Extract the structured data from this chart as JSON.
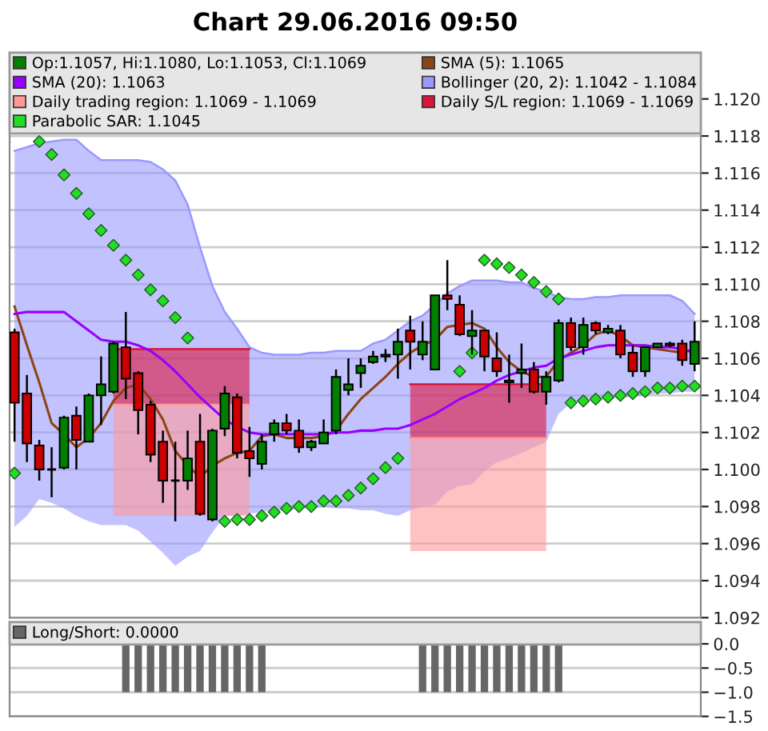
{
  "chart_data": [
    {
      "type": "candlestick",
      "title": "Chart 29.06.2016 09:50",
      "categories": [
        null,
        null,
        null,
        null,
        null,
        null,
        null,
        null,
        null,
        null,
        null,
        null,
        null,
        null,
        null,
        null,
        null,
        null,
        null,
        null,
        null,
        null,
        null,
        null,
        null,
        null,
        null,
        null,
        null,
        null,
        null,
        null,
        null,
        null,
        null,
        null,
        null,
        null,
        null,
        null,
        null,
        null,
        null,
        null,
        null,
        null,
        null,
        null,
        null,
        null,
        null,
        null,
        null,
        null,
        null,
        null
      ],
      "series": [
        {
          "name": "Op:1.1057, Hi:1.1080, Lo:1.1053, Cl:1.1069",
          "type": "candlestick",
          "color": "#008000",
          "colors": [
            "#cc0000",
            "#cc0000",
            "#cc0000",
            "#000000",
            "#008000",
            "#cc0000",
            "#008000",
            "#008000",
            "#008000",
            "#cc0000",
            "#cc0000",
            "#cc0000",
            "#cc0000",
            "#000000",
            "#008000",
            "#cc0000",
            "#008000",
            "#008000",
            "#cc0000",
            "#cc0000",
            "#008000",
            "#008000",
            "#cc0000",
            "#cc0000",
            "#008000",
            "#008000",
            "#008000",
            "#008000",
            "#008000",
            "#008000",
            "#cc0000",
            "#008000",
            "#cc0000",
            "#008000",
            "#008000",
            "#cc0000",
            "#cc0000",
            "#008000",
            "#cc0000",
            "#cc0000",
            "#008000",
            "#008000",
            "#cc0000",
            "#008000",
            "#008000",
            "#cc0000",
            "#008000",
            "#cc0000",
            "#008000",
            "#cc0000",
            "#cc0000",
            "#008000",
            "#008000",
            "#cc0000",
            "#cc0000",
            "#008000"
          ],
          "ohlc": [
            [
              1.1074,
              1.1076,
              1.1015,
              1.1036
            ],
            [
              1.1041,
              1.1051,
              1.1004,
              1.1014
            ],
            [
              1.1013,
              1.1016,
              1.0994,
              1.1
            ],
            [
              1.1,
              1.1012,
              1.0985,
              1.1
            ],
            [
              1.1001,
              1.1029,
              1.1,
              1.1028
            ],
            [
              1.1029,
              1.1034,
              1.1,
              1.1016
            ],
            [
              1.1015,
              1.1041,
              1.1015,
              1.104
            ],
            [
              1.104,
              1.1061,
              1.1024,
              1.1046
            ],
            [
              1.1042,
              1.1069,
              1.1041,
              1.1068
            ],
            [
              1.1066,
              1.1085,
              1.1038,
              1.1049
            ],
            [
              1.1052,
              1.1053,
              1.1019,
              1.1032
            ],
            [
              1.1035,
              1.1037,
              1.1004,
              1.1008
            ],
            [
              1.1015,
              1.1021,
              1.0982,
              1.0994
            ],
            [
              1.0994,
              1.1015,
              1.0972,
              1.0994
            ],
            [
              1.0994,
              1.1021,
              1.0989,
              1.1006
            ],
            [
              1.1015,
              1.103,
              1.0975,
              1.0976
            ],
            [
              1.0973,
              1.1022,
              1.0972,
              1.1021
            ],
            [
              1.1022,
              1.1045,
              1.1018,
              1.1041
            ],
            [
              1.1039,
              1.1041,
              1.1006,
              1.1009
            ],
            [
              1.101,
              1.1023,
              1.0996,
              1.1006
            ],
            [
              1.1003,
              1.1019,
              1.1,
              1.1015
            ],
            [
              1.1019,
              1.1027,
              1.1015,
              1.1025
            ],
            [
              1.1025,
              1.103,
              1.1019,
              1.1021
            ],
            [
              1.1021,
              1.1027,
              1.1009,
              1.1012
            ],
            [
              1.1012,
              1.1016,
              1.101,
              1.1015
            ],
            [
              1.1014,
              1.1027,
              1.1014,
              1.102
            ],
            [
              1.1021,
              1.1054,
              1.1019,
              1.105
            ],
            [
              1.1043,
              1.106,
              1.104,
              1.1046
            ],
            [
              1.1052,
              1.106,
              1.1044,
              1.1056
            ],
            [
              1.1058,
              1.1064,
              1.1057,
              1.1061
            ],
            [
              1.1062,
              1.1065,
              1.1058,
              1.1061
            ],
            [
              1.1062,
              1.1076,
              1.1049,
              1.1069
            ],
            [
              1.1075,
              1.1083,
              1.1054,
              1.1069
            ],
            [
              1.1062,
              1.108,
              1.1059,
              1.1069
            ],
            [
              1.1054,
              1.1094,
              1.1054,
              1.1094
            ],
            [
              1.1094,
              1.1113,
              1.1086,
              1.1092
            ],
            [
              1.1089,
              1.1094,
              1.1072,
              1.1073
            ],
            [
              1.1072,
              1.1086,
              1.1062,
              1.1075
            ],
            [
              1.1075,
              1.1075,
              1.1053,
              1.1061
            ],
            [
              1.106,
              1.1074,
              1.105,
              1.1053
            ],
            [
              1.1047,
              1.1062,
              1.1036,
              1.1048
            ],
            [
              1.1052,
              1.1068,
              1.1044,
              1.1054
            ],
            [
              1.1054,
              1.1058,
              1.1041,
              1.1042
            ],
            [
              1.1042,
              1.1053,
              1.1035,
              1.105
            ],
            [
              1.1048,
              1.1081,
              1.1047,
              1.1079
            ],
            [
              1.1079,
              1.1082,
              1.1064,
              1.1066
            ],
            [
              1.1066,
              1.1082,
              1.1062,
              1.1078
            ],
            [
              1.1079,
              1.108,
              1.1073,
              1.1075
            ],
            [
              1.1074,
              1.1078,
              1.1073,
              1.1076
            ],
            [
              1.1075,
              1.1078,
              1.106,
              1.1062
            ],
            [
              1.1063,
              1.1067,
              1.105,
              1.1053
            ],
            [
              1.1053,
              1.1066,
              1.105,
              1.1066
            ],
            [
              1.1066,
              1.1068,
              1.1066,
              1.1068
            ],
            [
              1.1068,
              1.1069,
              1.1066,
              1.1067
            ],
            [
              1.1068,
              1.107,
              1.1056,
              1.1059
            ],
            [
              1.1057,
              1.108,
              1.1053,
              1.1069
            ]
          ]
        },
        {
          "name": "SMA (5): 1.1065",
          "type": "line",
          "color": "#8b4513",
          "values": [
            1.1088,
            1.1067,
            1.1047,
            1.1025,
            1.1019,
            1.1012,
            1.1017,
            1.1025,
            1.1037,
            1.1044,
            1.1046,
            1.1038,
            1.1027,
            1.101,
            1.1002,
            1.0996,
            1.1002,
            1.1006,
            1.1009,
            1.101,
            1.1018,
            1.1019,
            1.1017,
            1.1017,
            1.1017,
            1.1018,
            1.1021,
            1.103,
            1.1038,
            1.1044,
            1.105,
            1.1057,
            1.1063,
            1.1067,
            1.107,
            1.1077,
            1.1078,
            1.1079,
            1.1076,
            1.1066,
            1.1058,
            1.1053,
            1.105,
            1.105,
            1.1059,
            1.1063,
            1.1067,
            1.1073,
            1.1075,
            1.1072,
            1.1067,
            1.1066,
            1.1065,
            1.1064,
            1.1063,
            1.1065
          ]
        },
        {
          "name": "SMA (20): 1.1063",
          "type": "line",
          "color": "#9900ff",
          "values": [
            1.1084,
            1.1085,
            1.1085,
            1.1085,
            1.1085,
            1.108,
            1.1075,
            1.107,
            1.1069,
            1.1069,
            1.1067,
            1.1064,
            1.1059,
            1.1053,
            1.1046,
            1.1039,
            1.1033,
            1.1027,
            1.1023,
            1.102,
            1.1019,
            1.1019,
            1.1019,
            1.1019,
            1.1019,
            1.1019,
            1.102,
            1.102,
            1.1021,
            1.1021,
            1.1022,
            1.1022,
            1.1024,
            1.1027,
            1.103,
            1.1034,
            1.1038,
            1.1041,
            1.1044,
            1.1048,
            1.1051,
            1.1053,
            1.1055,
            1.1056,
            1.106,
            1.1062,
            1.1064,
            1.1066,
            1.1067,
            1.1067,
            1.1067,
            1.1067,
            1.1066,
            1.1066,
            1.1065,
            1.1063
          ]
        },
        {
          "name": "Bollinger (20, 2): 1.1042 - 1.1084",
          "type": "line",
          "color": "#9999ff",
          "lower": [
            1.0969,
            1.0975,
            1.0984,
            1.0982,
            1.0979,
            1.0975,
            1.0972,
            1.097,
            1.097,
            1.097,
            1.0967,
            1.0961,
            1.0955,
            1.0948,
            1.0953,
            1.0956,
            1.0966,
            1.0975,
            1.0975,
            1.0976,
            1.0977,
            1.0978,
            1.0978,
            1.0979,
            1.0979,
            1.098,
            1.0979,
            1.0979,
            1.0978,
            1.0978,
            1.0976,
            1.0975,
            1.0978,
            1.098,
            1.0981,
            1.0988,
            1.0991,
            1.0992,
            1.0999,
            1.1004,
            1.1006,
            1.1009,
            1.1012,
            1.1015,
            1.103,
            1.1036,
            1.1038,
            1.1039,
            1.1039,
            1.1039,
            1.1039,
            1.104,
            1.1041,
            1.1041,
            1.1042,
            1.1042
          ],
          "values": [
            1.1172,
            1.1174,
            1.1176,
            1.1177,
            1.1178,
            1.1178,
            1.1172,
            1.1167,
            1.1167,
            1.1167,
            1.1167,
            1.1166,
            1.1162,
            1.1156,
            1.1143,
            1.112,
            1.1099,
            1.1085,
            1.1076,
            1.1066,
            1.1063,
            1.1062,
            1.1062,
            1.1062,
            1.1063,
            1.1063,
            1.1064,
            1.1064,
            1.1064,
            1.1068,
            1.107,
            1.1075,
            1.108,
            1.1083,
            1.1089,
            1.1095,
            1.1099,
            1.1102,
            1.1102,
            1.1102,
            1.1101,
            1.1101,
            1.1098,
            1.1096,
            1.1093,
            1.1092,
            1.1092,
            1.1093,
            1.1093,
            1.1094,
            1.1094,
            1.1094,
            1.1094,
            1.1094,
            1.1091,
            1.1084
          ],
          "upper": [
            1.1172,
            1.1174,
            1.1176,
            1.1177,
            1.1178,
            1.1178,
            1.1172,
            1.1167,
            1.1167,
            1.1167,
            1.1167,
            1.1166,
            1.1162,
            1.1156,
            1.1143,
            1.112,
            1.1099,
            1.1085,
            1.1076,
            1.1066,
            1.1063,
            1.1062,
            1.1062,
            1.1062,
            1.1063,
            1.1063,
            1.1064,
            1.1064,
            1.1064,
            1.1068,
            1.107,
            1.1075,
            1.108,
            1.1083,
            1.1089,
            1.1095,
            1.1099,
            1.1102,
            1.1102,
            1.1102,
            1.1101,
            1.1101,
            1.1098,
            1.1096,
            1.1093,
            1.1092,
            1.1092,
            1.1093,
            1.1093,
            1.1094,
            1.1094,
            1.1094,
            1.1094,
            1.1094,
            1.1091,
            1.1084
          ]
        },
        {
          "name": "Daily trading region: 1.1069 - 1.1069",
          "type": "line",
          "color": "#ff9999",
          "lower": [
            null,
            null,
            null,
            null,
            null,
            null,
            null,
            null,
            1.0975,
            1.0975,
            1.0975,
            1.0975,
            1.0975,
            1.0975,
            1.0975,
            1.0975,
            1.0975,
            1.0975,
            1.0975,
            1.0975,
            null,
            null,
            null,
            null,
            null,
            null,
            null,
            null,
            null,
            null,
            null,
            null,
            1.0956,
            1.0956,
            1.0956,
            1.0956,
            1.0956,
            1.0956,
            1.0956,
            1.0956,
            1.0956,
            1.0956,
            1.0956,
            1.0956,
            null,
            null,
            null,
            null,
            null,
            null,
            null,
            null,
            null,
            null,
            null,
            null
          ],
          "values": [
            null,
            null,
            null,
            null,
            null,
            null,
            null,
            null,
            1.1035,
            1.1035,
            1.1035,
            1.1035,
            1.1035,
            1.1035,
            1.1035,
            1.1035,
            1.1035,
            1.1035,
            1.1035,
            1.1035,
            null,
            null,
            null,
            null,
            null,
            null,
            null,
            null,
            null,
            null,
            null,
            null,
            1.1017,
            1.1017,
            1.1017,
            1.1017,
            1.1017,
            1.1017,
            1.1017,
            1.1017,
            1.1017,
            1.1017,
            1.1017,
            1.1017,
            null,
            null,
            null,
            null,
            null,
            null,
            null,
            null,
            null,
            null,
            null,
            null
          ],
          "upper": [
            null,
            null,
            null,
            null,
            null,
            null,
            null,
            null,
            1.1035,
            1.1035,
            1.1035,
            1.1035,
            1.1035,
            1.1035,
            1.1035,
            1.1035,
            1.1035,
            1.1035,
            1.1035,
            1.1035,
            null,
            null,
            null,
            null,
            null,
            null,
            null,
            null,
            null,
            null,
            null,
            null,
            1.1017,
            1.1017,
            1.1017,
            1.1017,
            1.1017,
            1.1017,
            1.1017,
            1.1017,
            1.1017,
            1.1017,
            1.1017,
            1.1017,
            null,
            null,
            null,
            null,
            null,
            null,
            null,
            null,
            null,
            null,
            null,
            null
          ]
        },
        {
          "name": "Daily S/L region: 1.1069 - 1.1069",
          "type": "line",
          "color": "#dc143c",
          "lower": [
            null,
            null,
            null,
            null,
            null,
            null,
            null,
            null,
            1.1035,
            1.1035,
            1.1035,
            1.1035,
            1.1035,
            1.1035,
            1.1035,
            1.1035,
            1.1035,
            1.1035,
            1.1035,
            1.1035,
            null,
            null,
            null,
            null,
            null,
            null,
            null,
            null,
            null,
            null,
            null,
            null,
            1.1017,
            1.1017,
            1.1017,
            1.1017,
            1.1017,
            1.1017,
            1.1017,
            1.1017,
            1.1017,
            1.1017,
            1.1017,
            1.1017,
            null,
            null,
            null,
            null,
            null,
            null,
            null,
            null,
            null,
            null,
            null,
            null
          ],
          "values": [
            null,
            null,
            null,
            null,
            null,
            null,
            null,
            null,
            1.1065,
            1.1065,
            1.1065,
            1.1065,
            1.1065,
            1.1065,
            1.1065,
            1.1065,
            1.1065,
            1.1065,
            1.1065,
            1.1065,
            null,
            null,
            null,
            null,
            null,
            null,
            null,
            null,
            null,
            null,
            null,
            null,
            1.1046,
            1.1046,
            1.1046,
            1.1046,
            1.1046,
            1.1046,
            1.1046,
            1.1046,
            1.1046,
            1.1046,
            1.1046,
            1.1046,
            null,
            null,
            null,
            null,
            null,
            null,
            null,
            null,
            null,
            null,
            null,
            null
          ],
          "upper": [
            null,
            null,
            null,
            null,
            null,
            null,
            null,
            null,
            1.1065,
            1.1065,
            1.1065,
            1.1065,
            1.1065,
            1.1065,
            1.1065,
            1.1065,
            1.1065,
            1.1065,
            1.1065,
            1.1065,
            null,
            null,
            null,
            null,
            null,
            null,
            null,
            null,
            null,
            null,
            null,
            null,
            1.1046,
            1.1046,
            1.1046,
            1.1046,
            1.1046,
            1.1046,
            1.1046,
            1.1046,
            1.1046,
            1.1046,
            1.1046,
            1.1046,
            null,
            null,
            null,
            null,
            null,
            null,
            null,
            null,
            null,
            null,
            null,
            null
          ]
        },
        {
          "name": "Parabolic SAR: 1.1045",
          "type": "scatter",
          "color": "#22dd22",
          "marker": "diamond",
          "values": [
            1.0998,
            null,
            1.1177,
            1.117,
            1.1159,
            1.1149,
            1.1138,
            1.1129,
            1.1121,
            1.1113,
            1.1105,
            1.1097,
            1.1091,
            1.1082,
            1.1071,
            null,
            null,
            1.0972,
            1.0973,
            1.0973,
            1.0975,
            1.0977,
            1.0979,
            1.098,
            1.098,
            1.0983,
            1.0983,
            1.0986,
            1.099,
            1.0995,
            1.1001,
            1.1006,
            null,
            null,
            null,
            null,
            1.1053,
            1.1063,
            1.1113,
            1.1111,
            1.1109,
            1.1105,
            1.1101,
            1.1096,
            1.1092,
            1.1036,
            1.1037,
            1.1038,
            1.1039,
            1.104,
            1.1041,
            1.1042,
            1.1044,
            1.1044,
            1.1045,
            1.1045
          ]
        }
      ],
      "ylim": [
        1.092,
        1.1225
      ],
      "yticks": [
        {
          "value": 1.092,
          "label": "1.092"
        },
        {
          "value": 1.094,
          "label": "1.094"
        },
        {
          "value": 1.096,
          "label": "1.096"
        },
        {
          "value": 1.098,
          "label": "1.098"
        },
        {
          "value": 1.1,
          "label": "1.100"
        },
        {
          "value": 1.102,
          "label": "1.102"
        },
        {
          "value": 1.104,
          "label": "1.104"
        },
        {
          "value": 1.106,
          "label": "1.106"
        },
        {
          "value": 1.108,
          "label": "1.108"
        },
        {
          "value": 1.11,
          "label": "1.110"
        },
        {
          "value": 1.112,
          "label": "1.112"
        },
        {
          "value": 1.114,
          "label": "1.114"
        },
        {
          "value": 1.116,
          "label": "1.116"
        },
        {
          "value": 1.118,
          "label": "1.118"
        },
        {
          "value": 1.12,
          "label": "1.120"
        }
      ],
      "grid": "y",
      "legend": "top",
      "tick_labels": "y"
    },
    {
      "type": "bar",
      "categories": [
        null,
        null,
        null,
        null,
        null,
        null,
        null,
        null,
        null,
        null,
        null,
        null,
        null,
        null,
        null,
        null,
        null,
        null,
        null,
        null,
        null,
        null,
        null,
        null,
        null,
        null,
        null,
        null,
        null,
        null,
        null,
        null,
        null,
        null,
        null,
        null,
        null,
        null,
        null,
        null,
        null,
        null,
        null,
        null,
        null,
        null,
        null,
        null,
        null,
        null,
        null,
        null,
        null,
        null,
        null,
        null
      ],
      "series": [
        {
          "name": "Long/Short: 0.0000",
          "color": "#666666",
          "values": [
            0,
            0,
            0,
            0,
            0,
            0,
            0,
            0,
            0,
            -1,
            -1,
            -1,
            -1,
            -1,
            -1,
            -1,
            -1,
            -1,
            -1,
            -1,
            -1,
            0,
            0,
            0,
            0,
            0,
            0,
            0,
            0,
            0,
            0,
            0,
            0,
            -1,
            -1,
            -1,
            -1,
            -1,
            -1,
            -1,
            -1,
            -1,
            -1,
            -1,
            -1,
            0,
            0,
            0,
            0,
            0,
            0,
            0,
            0,
            0,
            0,
            0
          ]
        }
      ],
      "ylim": [
        -1.5,
        0.45
      ],
      "yticks": [
        {
          "value": 0,
          "label": "0.0"
        },
        {
          "value": -0.5,
          "label": "−0.5"
        },
        {
          "value": -1,
          "label": "−1.0"
        },
        {
          "value": -1.5,
          "label": "−1.5"
        }
      ],
      "grid": "y",
      "legend": "top",
      "tick_labels": "y"
    }
  ]
}
